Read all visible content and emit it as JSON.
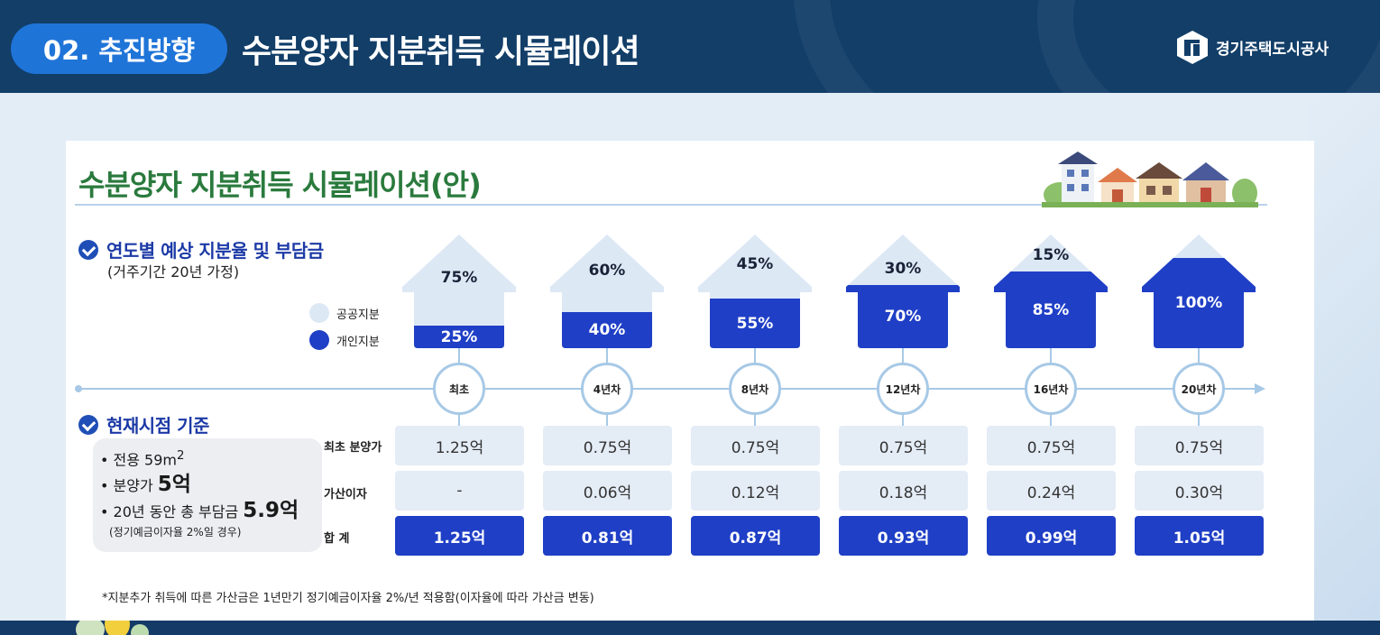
{
  "header": {
    "section": "02. 추진방향",
    "title": "수분양자 지분취득 시뮬레이션",
    "org": "경기주택도시공사"
  },
  "card": {
    "title": "수분양자 지분취득 시뮬레이션(안)",
    "section1": {
      "title": "연도별 예상 지분율 및 부담금",
      "subtitle": "(거주기간 20년 가정)"
    },
    "legend": {
      "public": "공공지분",
      "private": "개인지분"
    },
    "section2": {
      "title": "현재시점 기준"
    },
    "info": {
      "area_label": "전용 59m",
      "area_sup": "2",
      "price_label": "분양가 ",
      "price_value": "5억",
      "total_label": "20년 동안 총 부담금 ",
      "total_value": "5.9억",
      "note": "(정기예금이자율 2%일 경우)"
    },
    "row_labels": {
      "initial": "최초 분양가",
      "interest": "가산이자",
      "sum": "합 계"
    },
    "footnote": "*지분추가 취득에 따른 가산금은 1년만기 정기예금이자율  2%/년 적용함(이자율에 따라 가산금 변동)"
  },
  "periods": [
    {
      "label": "최초",
      "public": "75%",
      "private": "25%",
      "private_share": 25,
      "initial": "1.25억",
      "interest": "-",
      "total": "1.25억"
    },
    {
      "label": "4년차",
      "public": "60%",
      "private": "40%",
      "private_share": 40,
      "initial": "0.75억",
      "interest": "0.06억",
      "total": "0.81억"
    },
    {
      "label": "8년차",
      "public": "45%",
      "private": "55%",
      "private_share": 55,
      "initial": "0.75억",
      "interest": "0.12억",
      "total": "0.87억"
    },
    {
      "label": "12년차",
      "public": "30%",
      "private": "70%",
      "private_share": 70,
      "initial": "0.75억",
      "interest": "0.18억",
      "total": "0.93억"
    },
    {
      "label": "16년차",
      "public": "15%",
      "private": "85%",
      "private_share": 85,
      "initial": "0.75억",
      "interest": "0.24억",
      "total": "0.99억"
    },
    {
      "label": "20년차",
      "public": "",
      "private": "100%",
      "private_share": 100,
      "initial": "0.75억",
      "interest": "0.30억",
      "total": "1.05억"
    }
  ],
  "colors": {
    "public": "#dde8f5",
    "private": "#1f3fc6",
    "title_green": "#2a7a3d",
    "header_bg": "#123e68"
  }
}
